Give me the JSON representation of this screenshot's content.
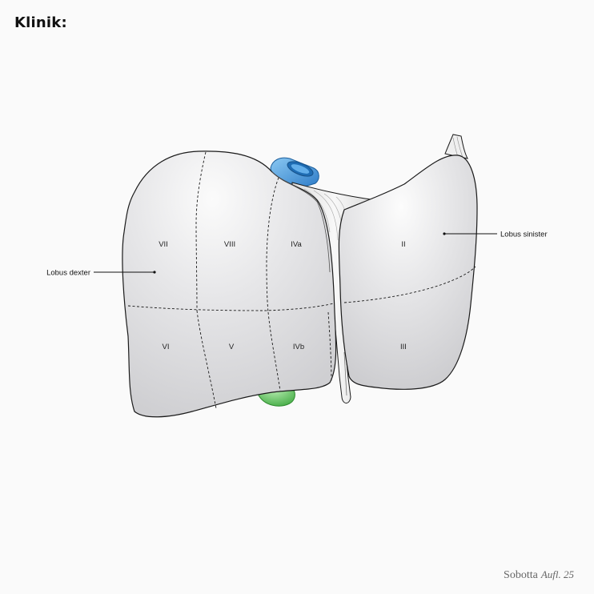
{
  "heading": "Klinik:",
  "callouts": {
    "right_lobe": "Lobus dexter",
    "left_lobe": "Lobus sinister"
  },
  "segments": {
    "vii": "VII",
    "viii": "VIII",
    "iva": "IVa",
    "ii": "II",
    "vi": "VI",
    "v": "V",
    "ivb": "IVb",
    "iii": "III"
  },
  "footer": {
    "publisher": "Sobotta",
    "edition": "Aufl. 25"
  },
  "colors": {
    "liver_fill": "#e2e2e4",
    "outline": "#1a1a1a",
    "vena_cava": "#3d8fd6",
    "gallbladder": "#5cbf5c",
    "ligament": "#f2f2f2"
  }
}
